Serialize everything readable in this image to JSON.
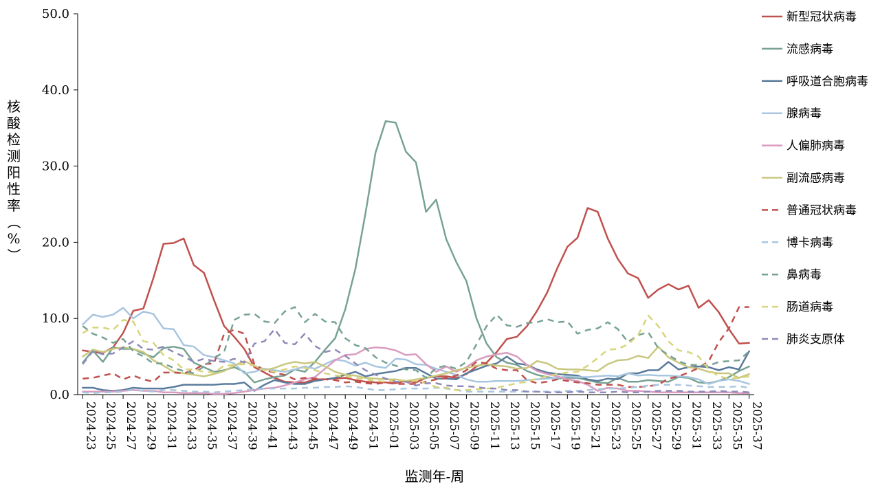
{
  "chart_data": {
    "type": "line",
    "title": "",
    "xlabel": "监测年-周",
    "ylabel": "核酸检测阳性率（%）",
    "ylim": [
      0,
      50
    ],
    "yticks": [
      0,
      10,
      20,
      30,
      40,
      50
    ],
    "ytick_labels": [
      "0.0",
      "10.0",
      "20.0",
      "30.0",
      "40.0",
      "50.0"
    ],
    "x": [
      "2024-23",
      "2024-24",
      "2024-25",
      "2024-26",
      "2024-27",
      "2024-28",
      "2024-29",
      "2024-30",
      "2024-31",
      "2024-32",
      "2024-33",
      "2024-34",
      "2024-35",
      "2024-36",
      "2024-37",
      "2024-38",
      "2024-39",
      "2024-40",
      "2024-41",
      "2024-42",
      "2024-43",
      "2024-44",
      "2024-45",
      "2024-46",
      "2024-47",
      "2024-48",
      "2024-49",
      "2024-50",
      "2024-51",
      "2024-52",
      "2025-01",
      "2025-02",
      "2025-03",
      "2025-04",
      "2025-05",
      "2025-06",
      "2025-07",
      "2025-08",
      "2025-09",
      "2025-10",
      "2025-11",
      "2025-12",
      "2025-13",
      "2025-14",
      "2025-15",
      "2025-16",
      "2025-17",
      "2025-18",
      "2025-19",
      "2025-20",
      "2025-21",
      "2025-22",
      "2025-23",
      "2025-24",
      "2025-25",
      "2025-26",
      "2025-27",
      "2025-28",
      "2025-29",
      "2025-30",
      "2025-31",
      "2025-32",
      "2025-33",
      "2025-34",
      "2025-35",
      "2025-36",
      "2025-37"
    ],
    "xtick_labels": [
      "2024-23",
      "2024-25",
      "2024-27",
      "2024-29",
      "2024-31",
      "2024-33",
      "2024-35",
      "2024-37",
      "2024-39",
      "2024-41",
      "2024-43",
      "2024-45",
      "2024-47",
      "2024-49",
      "2024-51",
      "2025-01",
      "2025-03",
      "2025-05",
      "2025-07",
      "2025-09",
      "2025-11",
      "2025-13",
      "2025-15",
      "2025-17",
      "2025-19",
      "2025-21",
      "2025-23",
      "2025-25",
      "2025-27",
      "2025-29",
      "2025-31",
      "2025-33",
      "2025-35",
      "2025-37"
    ],
    "legend_position": "right",
    "grid": false,
    "series": [
      {
        "name": "新型冠状病毒",
        "color": "#c0504d",
        "dash": "solid",
        "values": [
          5.8,
          5.6,
          5.5,
          6.2,
          8.1,
          11.0,
          11.3,
          15.3,
          19.8,
          19.9,
          20.5,
          17.0,
          16.0,
          12.4,
          9.0,
          7.6,
          6.0,
          3.6,
          2.9,
          2.2,
          1.7,
          1.6,
          1.6,
          2.0,
          2.0,
          2.1,
          2.2,
          1.9,
          1.7,
          1.6,
          1.6,
          1.5,
          1.8,
          1.6,
          2.2,
          2.4,
          2.4,
          2.2,
          2.7,
          3.7,
          4.2,
          5.6,
          7.3,
          7.6,
          9.0,
          11.0,
          13.4,
          16.6,
          19.4,
          20.6,
          24.5,
          24.0,
          20.5,
          17.8,
          15.9,
          15.3,
          12.7,
          13.8,
          14.5,
          13.8,
          14.3,
          11.4,
          12.4,
          10.8,
          8.6,
          6.7,
          6.8
        ]
      },
      {
        "name": "流感病毒",
        "color": "#77a293",
        "dash": "solid",
        "values": [
          4.2,
          5.8,
          4.3,
          6.2,
          6.0,
          6.0,
          5.4,
          4.9,
          6.1,
          6.3,
          6.0,
          4.2,
          3.6,
          3.0,
          3.2,
          3.6,
          3.0,
          1.6,
          2.0,
          2.3,
          2.5,
          3.3,
          3.0,
          4.3,
          5.9,
          7.4,
          11.2,
          16.5,
          23.8,
          31.8,
          35.9,
          35.7,
          31.9,
          30.5,
          24.0,
          25.6,
          20.4,
          17.4,
          14.9,
          10.0,
          6.7,
          4.9,
          4.2,
          3.9,
          3.1,
          2.6,
          2.3,
          2.1,
          2.2,
          2.2,
          1.9,
          1.6,
          1.5,
          2.2,
          1.7,
          1.7,
          1.9,
          1.8,
          1.7,
          2.3,
          2.2,
          1.6,
          1.5,
          1.8,
          2.3,
          3.1,
          3.7
        ]
      },
      {
        "name": "呼吸道合胞病毒",
        "color": "#5a7b9c",
        "dash": "solid",
        "values": [
          0.9,
          0.9,
          0.6,
          0.5,
          0.6,
          0.9,
          0.8,
          0.8,
          0.8,
          1.0,
          1.3,
          1.3,
          1.3,
          1.3,
          1.4,
          1.4,
          1.6,
          0.5,
          1.3,
          1.9,
          1.6,
          1.4,
          1.4,
          1.8,
          2.0,
          2.2,
          2.6,
          3.0,
          2.4,
          2.7,
          2.9,
          3.1,
          3.5,
          3.5,
          2.8,
          2.1,
          2.1,
          2.0,
          2.8,
          3.3,
          3.8,
          4.1,
          5.0,
          4.1,
          3.9,
          3.3,
          2.9,
          2.7,
          2.6,
          2.5,
          2.0,
          1.8,
          2.1,
          2.0,
          2.8,
          2.8,
          3.2,
          3.2,
          4.3,
          3.3,
          3.6,
          3.7,
          3.6,
          3.2,
          3.6,
          3.3,
          5.7
        ]
      },
      {
        "name": "腺病毒",
        "color": "#a8c6e0",
        "dash": "solid",
        "values": [
          9.2,
          10.5,
          10.2,
          10.5,
          11.4,
          10.0,
          10.9,
          10.6,
          8.7,
          8.6,
          6.5,
          6.3,
          5.2,
          4.9,
          4.5,
          4.1,
          2.8,
          3.0,
          3.4,
          3.2,
          3.0,
          3.3,
          3.7,
          3.4,
          4.0,
          4.6,
          4.4,
          3.8,
          4.2,
          3.7,
          3.5,
          4.7,
          4.6,
          4.0,
          3.9,
          3.4,
          3.0,
          2.6,
          2.0,
          1.7,
          1.7,
          1.8,
          1.8,
          1.8,
          1.9,
          2.0,
          2.1,
          2.2,
          2.4,
          2.3,
          2.3,
          2.4,
          2.5,
          2.4,
          2.8,
          2.5,
          2.6,
          2.5,
          2.5,
          2.4,
          2.3,
          2.0,
          1.4,
          1.8,
          2.0,
          1.8,
          1.4
        ]
      },
      {
        "name": "人偏肺病毒",
        "color": "#d99bbf",
        "dash": "solid",
        "values": [
          0.4,
          0.4,
          0.4,
          0.4,
          0.5,
          0.6,
          0.5,
          0.5,
          0.3,
          0.3,
          0.2,
          0.2,
          0.2,
          0.1,
          0.1,
          0.2,
          0.4,
          0.6,
          0.8,
          0.9,
          1.2,
          1.6,
          2.0,
          2.3,
          3.4,
          4.5,
          5.2,
          5.3,
          6.0,
          6.2,
          6.1,
          5.8,
          5.2,
          5.3,
          4.0,
          3.0,
          3.7,
          3.0,
          3.6,
          4.5,
          5.0,
          5.3,
          5.5,
          5.0,
          3.9,
          3.1,
          2.7,
          2.4,
          2.0,
          1.8,
          1.3,
          0.5,
          0.9,
          0.8,
          0.5,
          0.5,
          0.4,
          0.3,
          0.3,
          0.3,
          0.3,
          0.3,
          0.3,
          0.3,
          0.3,
          0.2,
          0.2
        ]
      },
      {
        "name": "副流感病毒",
        "color": "#c9c77f",
        "dash": "solid",
        "values": [
          5.0,
          5.9,
          5.6,
          6.0,
          6.2,
          6.0,
          5.6,
          4.5,
          3.8,
          3.0,
          2.8,
          2.6,
          2.4,
          2.7,
          3.1,
          3.8,
          4.4,
          3.8,
          3.2,
          3.5,
          4.0,
          4.3,
          4.1,
          4.3,
          3.7,
          3.0,
          2.6,
          2.5,
          2.2,
          2.1,
          2.0,
          2.0,
          1.8,
          2.0,
          2.2,
          2.5,
          2.8,
          3.2,
          3.5,
          3.8,
          4.0,
          3.8,
          3.7,
          3.4,
          3.5,
          4.4,
          4.1,
          3.4,
          3.3,
          3.3,
          3.2,
          3.1,
          4.0,
          4.5,
          4.6,
          5.1,
          4.8,
          6.3,
          4.9,
          4.2,
          3.6,
          3.4,
          3.0,
          2.8,
          2.8,
          2.2,
          2.7
        ]
      },
      {
        "name": "普通冠状病毒",
        "color": "#c0504d",
        "dash": "dashed",
        "values": [
          2.1,
          2.2,
          2.5,
          2.8,
          2.0,
          2.5,
          2.0,
          1.7,
          2.9,
          2.9,
          2.8,
          3.2,
          4.0,
          4.1,
          8.0,
          8.5,
          8.0,
          4.0,
          3.2,
          2.9,
          2.6,
          2.0,
          2.2,
          2.1,
          2.0,
          1.9,
          1.6,
          1.7,
          1.5,
          1.4,
          1.6,
          1.4,
          1.4,
          1.4,
          1.7,
          2.0,
          2.2,
          2.5,
          3.2,
          4.3,
          4.1,
          3.4,
          3.2,
          3.2,
          1.9,
          1.5,
          1.7,
          2.0,
          1.8,
          1.6,
          1.5,
          1.3,
          1.3,
          1.3,
          1.0,
          1.0,
          1.1,
          1.3,
          2.1,
          2.4,
          2.9,
          3.5,
          4.4,
          6.9,
          8.7,
          11.5,
          11.5
        ]
      },
      {
        "name": "博卡病毒",
        "color": "#a8c6e0",
        "dash": "dashed",
        "values": [
          0.3,
          0.2,
          0.3,
          0.3,
          0.4,
          0.7,
          0.5,
          0.4,
          0.6,
          0.6,
          0.5,
          0.4,
          0.4,
          0.3,
          0.4,
          0.5,
          0.6,
          0.7,
          0.8,
          0.8,
          0.8,
          0.8,
          0.9,
          0.9,
          1.0,
          1.0,
          1.1,
          1.0,
          0.8,
          0.6,
          0.6,
          0.7,
          0.8,
          0.8,
          0.8,
          0.9,
          0.8,
          0.6,
          0.4,
          0.4,
          0.4,
          0.4,
          0.4,
          0.4,
          0.4,
          0.4,
          0.4,
          0.4,
          0.5,
          0.5,
          0.6,
          0.7,
          0.8,
          0.8,
          0.9,
          1.0,
          1.2,
          1.3,
          1.3,
          1.3,
          1.2,
          1.1,
          1.0,
          1.0,
          1.0,
          1.1,
          0.9
        ]
      },
      {
        "name": "鼻病毒",
        "color": "#77a293",
        "dash": "dashed",
        "values": [
          9.0,
          8.0,
          7.5,
          6.8,
          7.3,
          5.7,
          5.0,
          4.1,
          4.1,
          3.5,
          3.1,
          2.8,
          3.7,
          4.8,
          5.6,
          9.8,
          10.5,
          10.6,
          9.6,
          9.4,
          10.9,
          11.5,
          9.5,
          10.6,
          9.6,
          9.5,
          7.4,
          6.5,
          6.1,
          4.9,
          4.2,
          3.8,
          3.3,
          3.2,
          2.2,
          3.5,
          3.8,
          3.4,
          4.3,
          6.6,
          9.0,
          10.5,
          9.1,
          8.9,
          9.4,
          9.5,
          9.9,
          9.5,
          9.6,
          8.0,
          8.5,
          8.7,
          9.5,
          8.6,
          6.9,
          7.8,
          8.2,
          6.1,
          5.2,
          4.4,
          3.9,
          3.9,
          3.8,
          4.3,
          4.4,
          4.5,
          5.7
        ]
      },
      {
        "name": "肠道病毒",
        "color": "#d7d47b",
        "dash": "dashed",
        "values": [
          8.1,
          8.8,
          8.8,
          8.5,
          9.8,
          9.6,
          7.0,
          6.8,
          5.2,
          4.5,
          3.3,
          3.3,
          3.0,
          2.9,
          3.8,
          3.9,
          4.0,
          3.8,
          3.2,
          3.0,
          3.3,
          3.7,
          3.5,
          3.2,
          2.8,
          2.5,
          2.4,
          2.2,
          2.0,
          1.8,
          1.7,
          1.9,
          1.8,
          1.8,
          1.5,
          1.0,
          0.9,
          0.6,
          0.6,
          0.7,
          0.8,
          0.9,
          1.2,
          1.5,
          1.7,
          2.1,
          2.4,
          2.7,
          2.9,
          3.0,
          3.8,
          4.8,
          5.9,
          6.0,
          6.6,
          7.8,
          10.4,
          9.0,
          7.0,
          5.8,
          5.6,
          5.0,
          3.3,
          2.4,
          2.1,
          2.2,
          2.4
        ]
      },
      {
        "name": "肺炎支原体",
        "color": "#8f8ab8",
        "dash": "dashed",
        "values": [
          4.0,
          5.7,
          5.3,
          5.4,
          6.2,
          7.0,
          6.0,
          5.9,
          6.3,
          5.6,
          5.0,
          4.3,
          4.7,
          4.4,
          4.3,
          4.7,
          4.2,
          6.7,
          7.0,
          8.6,
          6.8,
          6.6,
          8.0,
          6.4,
          5.6,
          5.9,
          5.1,
          4.1,
          3.2,
          2.6,
          2.1,
          1.7,
          1.7,
          1.2,
          1.5,
          1.5,
          1.2,
          1.1,
          1.1,
          1.0,
          0.8,
          0.8,
          0.6,
          0.6,
          0.4,
          0.4,
          0.3,
          0.3,
          0.3,
          0.4,
          0.3,
          0.3,
          0.3,
          0.4,
          0.3,
          0.3,
          0.4,
          0.5,
          0.5,
          0.5,
          0.4,
          0.4,
          0.4,
          0.5,
          0.4,
          0.4,
          0.3
        ]
      }
    ]
  }
}
